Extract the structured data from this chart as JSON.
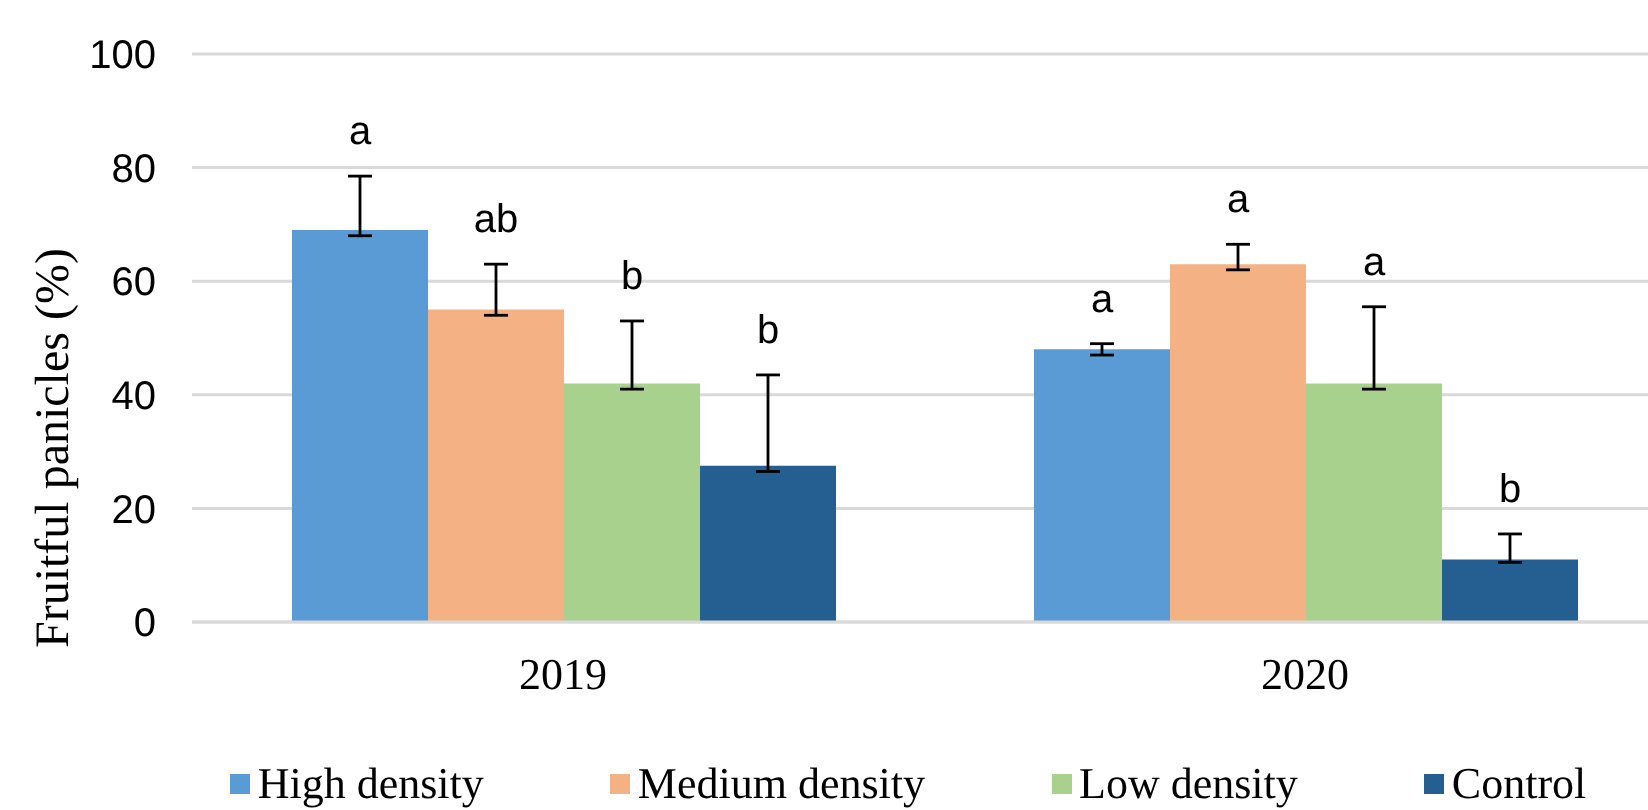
{
  "chart_data": {
    "type": "bar",
    "ylabel": "Fruitful panicles (%)",
    "categories": [
      "2019",
      "2020"
    ],
    "series": [
      {
        "name": "High density",
        "color": "#5b9bd5",
        "values": [
          69,
          48
        ],
        "errors": [
          [
            68,
            78.5
          ],
          [
            47,
            49
          ]
        ],
        "value_labels": [
          "a",
          "a"
        ]
      },
      {
        "name": "Medium density",
        "color": "#f4b183",
        "values": [
          55,
          63
        ],
        "errors": [
          [
            54,
            63
          ],
          [
            62,
            66.5
          ]
        ],
        "value_labels": [
          "ab",
          "a"
        ]
      },
      {
        "name": "Low density",
        "color": "#a9d18e",
        "values": [
          42,
          42
        ],
        "errors": [
          [
            41,
            53
          ],
          [
            41,
            55.5
          ]
        ],
        "value_labels": [
          "b",
          "a"
        ]
      },
      {
        "name": "Control",
        "color": "#255e91",
        "values": [
          27.5,
          11
        ],
        "errors": [
          [
            26.5,
            43.5
          ],
          [
            10.5,
            15.5
          ]
        ],
        "value_labels": [
          "b",
          "b"
        ]
      }
    ],
    "ylim": [
      0,
      100
    ],
    "yticks": [
      0,
      20,
      40,
      60,
      80,
      100
    ],
    "grid": "y",
    "legend": "bottom"
  }
}
